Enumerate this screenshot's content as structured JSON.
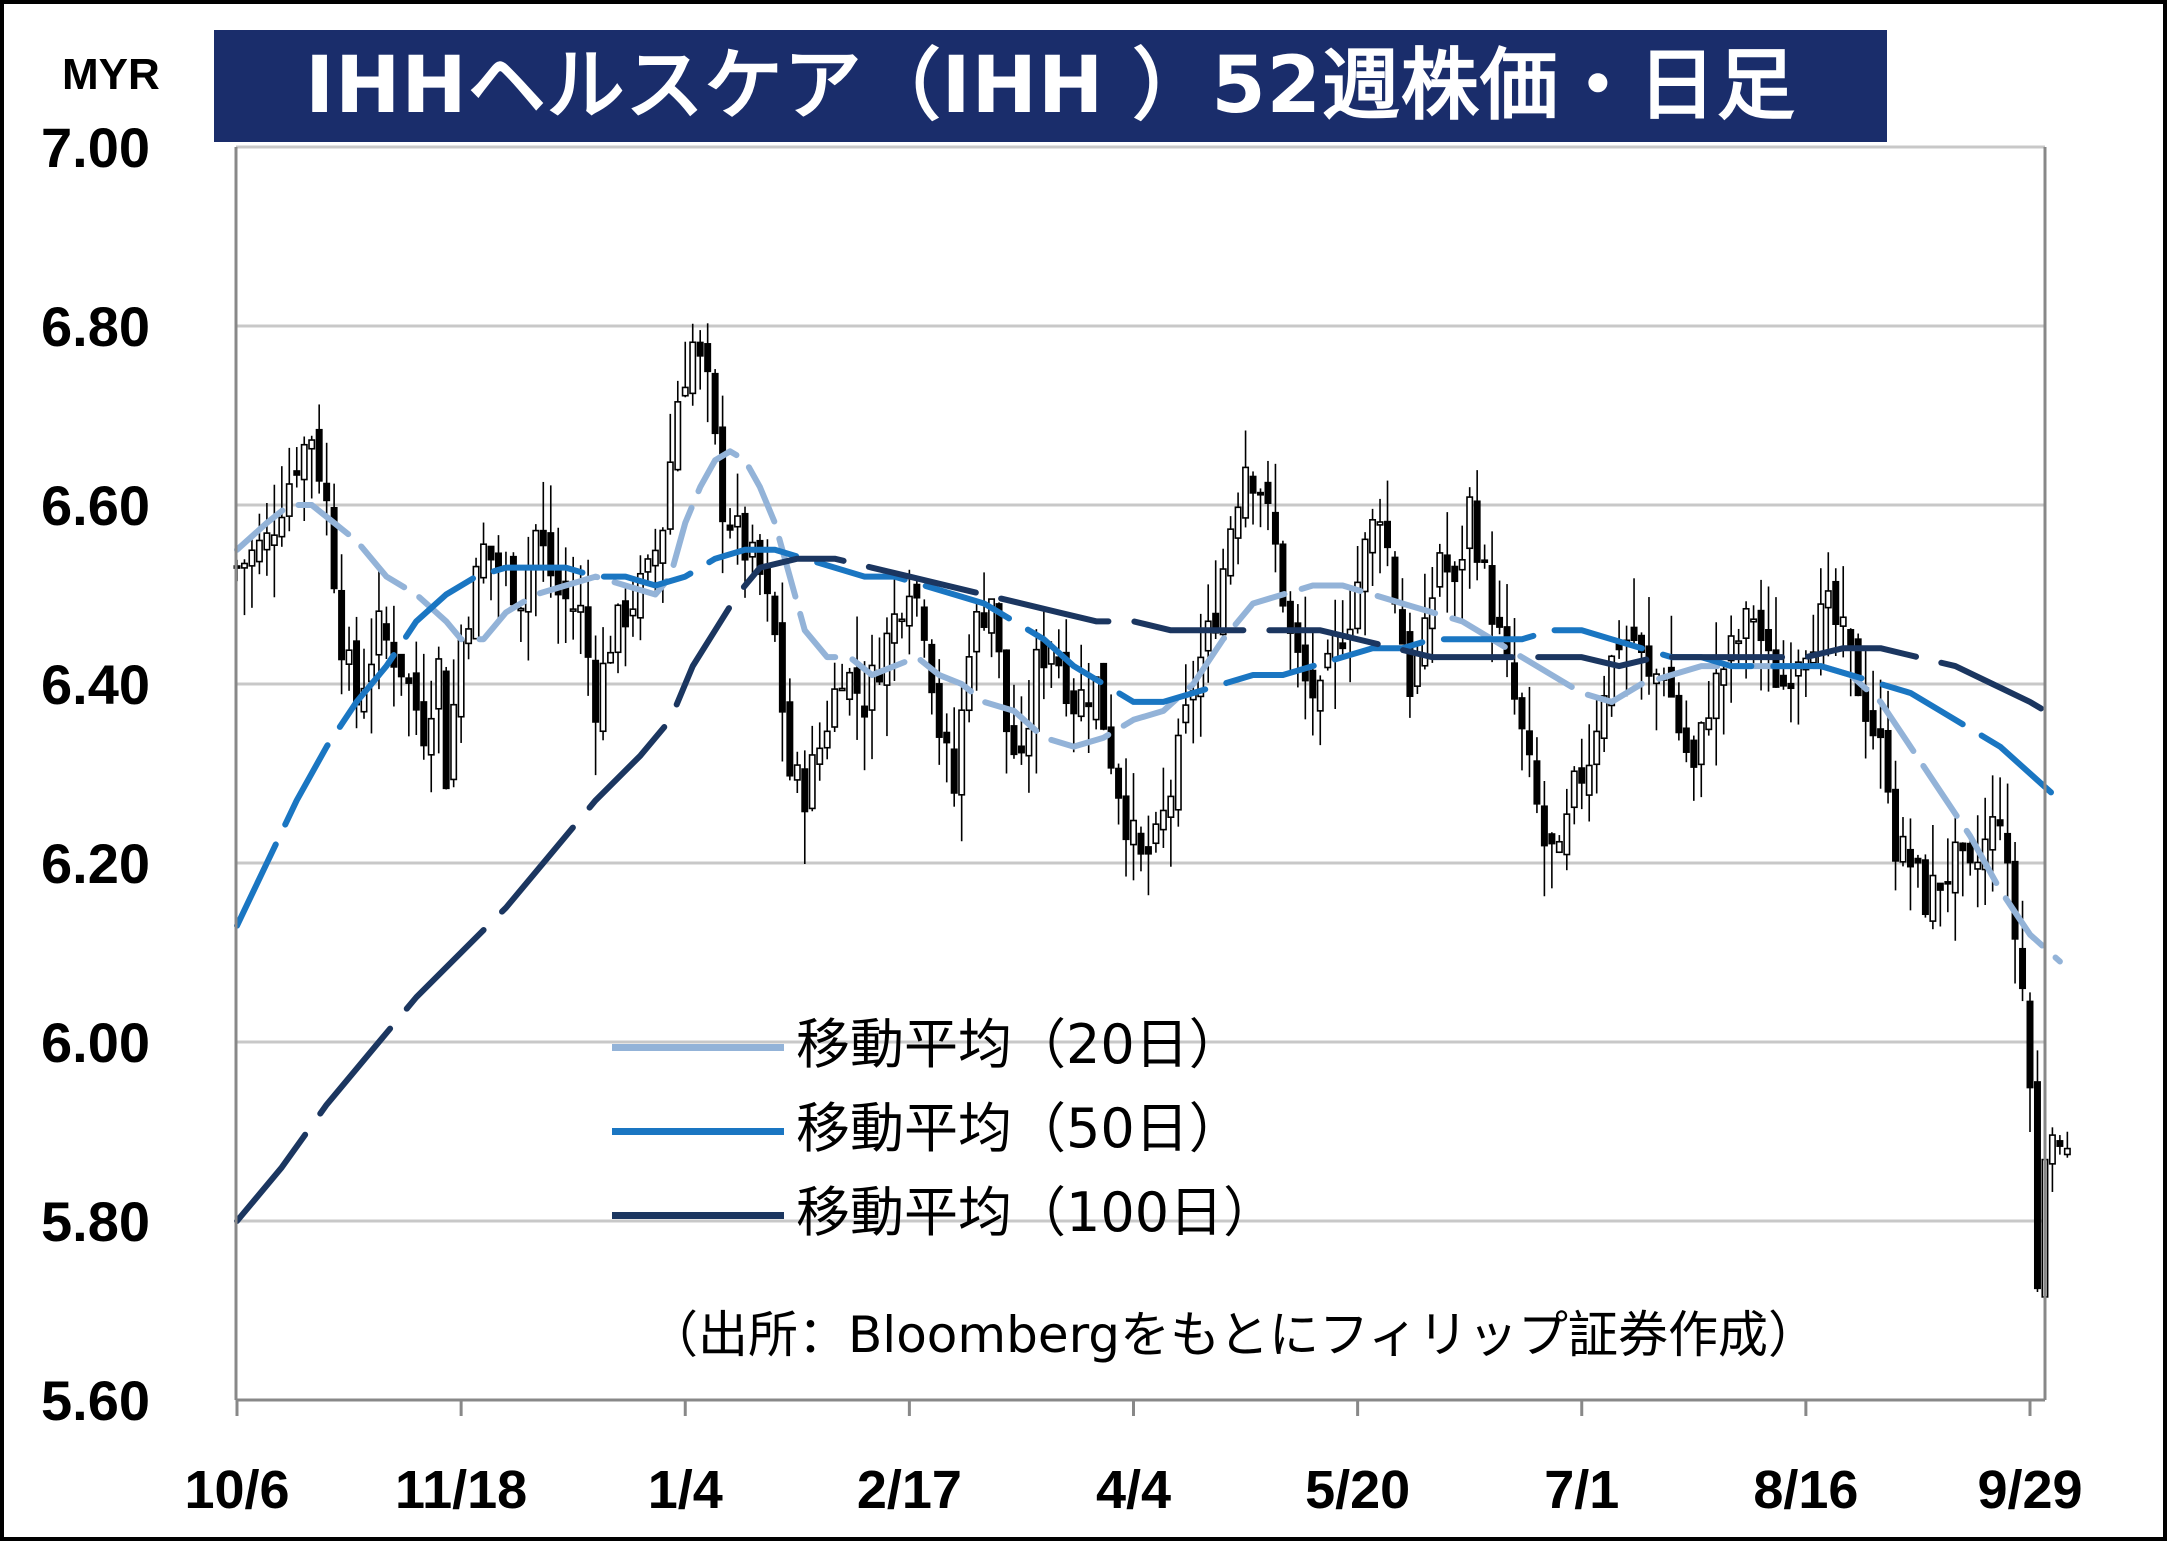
{
  "title": "IHHヘルスケア（IHH ）52週株価・日足",
  "unit": "MYR",
  "source": "（出所：Bloombergをもとにフィリップ証券作成）",
  "colors": {
    "title_bg": "#1a2d6b",
    "ma20": "#93b3d8",
    "ma50": "#1a76c2",
    "ma100": "#1b3660",
    "grid": "#c8c8c8",
    "candle": "#000000"
  },
  "chart_data": {
    "type": "candlestick",
    "title": "IHHヘルスケア（IHH ）52週株価・日足",
    "ylabel": "MYR",
    "ylim": [
      5.6,
      7.0
    ],
    "yticks": [
      "7.00",
      "6.80",
      "6.60",
      "6.40",
      "6.20",
      "6.00",
      "5.80",
      "5.60"
    ],
    "xticks": [
      "10/6",
      "11/18",
      "1/4",
      "2/17",
      "4/4",
      "5/20",
      "7/1",
      "8/16",
      "9/29"
    ],
    "xtick_positions": [
      0,
      30,
      60,
      90,
      120,
      150,
      180,
      210,
      240
    ],
    "num_days": 241,
    "grid": "horizontal",
    "legend_position": "bottom-center",
    "close_anchors": [
      [
        0,
        6.53
      ],
      [
        4,
        6.56
      ],
      [
        8,
        6.65
      ],
      [
        10,
        6.68
      ],
      [
        12,
        6.6
      ],
      [
        14,
        6.45
      ],
      [
        16,
        6.38
      ],
      [
        19,
        6.46
      ],
      [
        22,
        6.42
      ],
      [
        25,
        6.35
      ],
      [
        27,
        6.42
      ],
      [
        28,
        6.3
      ],
      [
        30,
        6.45
      ],
      [
        33,
        6.55
      ],
      [
        36,
        6.52
      ],
      [
        38,
        6.5
      ],
      [
        40,
        6.57
      ],
      [
        43,
        6.5
      ],
      [
        46,
        6.48
      ],
      [
        48,
        6.38
      ],
      [
        50,
        6.45
      ],
      [
        52,
        6.48
      ],
      [
        55,
        6.52
      ],
      [
        57,
        6.58
      ],
      [
        59,
        6.72
      ],
      [
        61,
        6.78
      ],
      [
        63,
        6.73
      ],
      [
        65,
        6.6
      ],
      [
        68,
        6.55
      ],
      [
        70,
        6.52
      ],
      [
        72,
        6.45
      ],
      [
        74,
        6.3
      ],
      [
        76,
        6.28
      ],
      [
        78,
        6.33
      ],
      [
        81,
        6.42
      ],
      [
        84,
        6.38
      ],
      [
        87,
        6.45
      ],
      [
        90,
        6.52
      ],
      [
        92,
        6.47
      ],
      [
        94,
        6.35
      ],
      [
        96,
        6.28
      ],
      [
        98,
        6.45
      ],
      [
        101,
        6.5
      ],
      [
        103,
        6.35
      ],
      [
        105,
        6.3
      ],
      [
        107,
        6.42
      ],
      [
        109,
        6.45
      ],
      [
        112,
        6.38
      ],
      [
        115,
        6.4
      ],
      [
        117,
        6.32
      ],
      [
        119,
        6.25
      ],
      [
        121,
        6.2
      ],
      [
        123,
        6.22
      ],
      [
        125,
        6.28
      ],
      [
        128,
        6.4
      ],
      [
        131,
        6.48
      ],
      [
        133,
        6.58
      ],
      [
        135,
        6.65
      ],
      [
        137,
        6.62
      ],
      [
        139,
        6.55
      ],
      [
        141,
        6.45
      ],
      [
        143,
        6.4
      ],
      [
        145,
        6.38
      ],
      [
        147,
        6.44
      ],
      [
        149,
        6.48
      ],
      [
        151,
        6.55
      ],
      [
        153,
        6.6
      ],
      [
        155,
        6.5
      ],
      [
        157,
        6.4
      ],
      [
        159,
        6.45
      ],
      [
        161,
        6.55
      ],
      [
        163,
        6.5
      ],
      [
        165,
        6.6
      ],
      [
        167,
        6.52
      ],
      [
        169,
        6.45
      ],
      [
        171,
        6.38
      ],
      [
        173,
        6.3
      ],
      [
        175,
        6.22
      ],
      [
        177,
        6.2
      ],
      [
        179,
        6.28
      ],
      [
        181,
        6.32
      ],
      [
        183,
        6.4
      ],
      [
        185,
        6.45
      ],
      [
        187,
        6.45
      ],
      [
        189,
        6.4
      ],
      [
        191,
        6.42
      ],
      [
        193,
        6.35
      ],
      [
        195,
        6.3
      ],
      [
        197,
        6.38
      ],
      [
        199,
        6.42
      ],
      [
        201,
        6.45
      ],
      [
        203,
        6.48
      ],
      [
        205,
        6.42
      ],
      [
        207,
        6.4
      ],
      [
        209,
        6.44
      ],
      [
        211,
        6.46
      ],
      [
        213,
        6.48
      ],
      [
        215,
        6.45
      ],
      [
        217,
        6.4
      ],
      [
        219,
        6.35
      ],
      [
        221,
        6.3
      ],
      [
        222,
        6.22
      ],
      [
        224,
        6.2
      ],
      [
        226,
        6.16
      ],
      [
        228,
        6.18
      ],
      [
        230,
        6.2
      ],
      [
        232,
        6.18
      ],
      [
        234,
        6.22
      ],
      [
        236,
        6.26
      ],
      [
        237,
        6.18
      ],
      [
        238,
        6.12
      ],
      [
        239,
        6.06
      ],
      [
        240,
        5.95
      ],
      [
        241,
        5.72
      ],
      [
        242,
        5.88
      ],
      [
        243,
        5.92
      ],
      [
        244,
        5.86
      ],
      [
        245,
        5.9
      ]
    ],
    "series": [
      {
        "name": "移動平均（20日）",
        "color": "#93b3d8",
        "points": [
          [
            0,
            6.55
          ],
          [
            4,
            6.58
          ],
          [
            7,
            6.6
          ],
          [
            10,
            6.6
          ],
          [
            13,
            6.58
          ],
          [
            16,
            6.56
          ],
          [
            20,
            6.52
          ],
          [
            24,
            6.5
          ],
          [
            28,
            6.47
          ],
          [
            30,
            6.45
          ],
          [
            33,
            6.45
          ],
          [
            36,
            6.48
          ],
          [
            40,
            6.5
          ],
          [
            44,
            6.51
          ],
          [
            48,
            6.52
          ],
          [
            52,
            6.51
          ],
          [
            56,
            6.5
          ],
          [
            58,
            6.52
          ],
          [
            60,
            6.58
          ],
          [
            62,
            6.62
          ],
          [
            64,
            6.65
          ],
          [
            66,
            6.66
          ],
          [
            68,
            6.65
          ],
          [
            70,
            6.62
          ],
          [
            72,
            6.58
          ],
          [
            74,
            6.52
          ],
          [
            76,
            6.46
          ],
          [
            79,
            6.43
          ],
          [
            82,
            6.43
          ],
          [
            85,
            6.41
          ],
          [
            88,
            6.42
          ],
          [
            91,
            6.43
          ],
          [
            94,
            6.41
          ],
          [
            97,
            6.4
          ],
          [
            100,
            6.38
          ],
          [
            104,
            6.37
          ],
          [
            108,
            6.34
          ],
          [
            112,
            6.33
          ],
          [
            116,
            6.34
          ],
          [
            120,
            6.36
          ],
          [
            124,
            6.37
          ],
          [
            128,
            6.4
          ],
          [
            132,
            6.45
          ],
          [
            136,
            6.49
          ],
          [
            140,
            6.5
          ],
          [
            144,
            6.51
          ],
          [
            148,
            6.51
          ],
          [
            152,
            6.5
          ],
          [
            156,
            6.49
          ],
          [
            160,
            6.48
          ],
          [
            164,
            6.47
          ],
          [
            168,
            6.45
          ],
          [
            172,
            6.43
          ],
          [
            176,
            6.41
          ],
          [
            180,
            6.39
          ],
          [
            184,
            6.38
          ],
          [
            188,
            6.4
          ],
          [
            192,
            6.41
          ],
          [
            196,
            6.42
          ],
          [
            200,
            6.42
          ],
          [
            204,
            6.42
          ],
          [
            208,
            6.42
          ],
          [
            212,
            6.42
          ],
          [
            216,
            6.41
          ],
          [
            220,
            6.38
          ],
          [
            224,
            6.33
          ],
          [
            228,
            6.28
          ],
          [
            232,
            6.23
          ],
          [
            236,
            6.17
          ],
          [
            240,
            6.12
          ],
          [
            244,
            6.09
          ]
        ]
      },
      {
        "name": "移動平均（50日）",
        "color": "#1a76c2",
        "points": [
          [
            0,
            6.13
          ],
          [
            4,
            6.2
          ],
          [
            8,
            6.27
          ],
          [
            12,
            6.33
          ],
          [
            16,
            6.38
          ],
          [
            20,
            6.42
          ],
          [
            24,
            6.47
          ],
          [
            28,
            6.5
          ],
          [
            32,
            6.52
          ],
          [
            36,
            6.53
          ],
          [
            40,
            6.53
          ],
          [
            44,
            6.53
          ],
          [
            48,
            6.52
          ],
          [
            52,
            6.52
          ],
          [
            56,
            6.51
          ],
          [
            60,
            6.52
          ],
          [
            64,
            6.54
          ],
          [
            68,
            6.55
          ],
          [
            72,
            6.55
          ],
          [
            76,
            6.54
          ],
          [
            80,
            6.53
          ],
          [
            84,
            6.52
          ],
          [
            88,
            6.52
          ],
          [
            92,
            6.51
          ],
          [
            96,
            6.5
          ],
          [
            100,
            6.49
          ],
          [
            104,
            6.47
          ],
          [
            108,
            6.45
          ],
          [
            112,
            6.42
          ],
          [
            116,
            6.4
          ],
          [
            120,
            6.38
          ],
          [
            124,
            6.38
          ],
          [
            128,
            6.39
          ],
          [
            132,
            6.4
          ],
          [
            136,
            6.41
          ],
          [
            140,
            6.41
          ],
          [
            144,
            6.42
          ],
          [
            148,
            6.43
          ],
          [
            152,
            6.44
          ],
          [
            156,
            6.44
          ],
          [
            160,
            6.45
          ],
          [
            164,
            6.45
          ],
          [
            168,
            6.45
          ],
          [
            172,
            6.45
          ],
          [
            176,
            6.46
          ],
          [
            180,
            6.46
          ],
          [
            184,
            6.45
          ],
          [
            188,
            6.44
          ],
          [
            192,
            6.43
          ],
          [
            196,
            6.43
          ],
          [
            200,
            6.42
          ],
          [
            204,
            6.42
          ],
          [
            208,
            6.42
          ],
          [
            212,
            6.42
          ],
          [
            216,
            6.41
          ],
          [
            220,
            6.4
          ],
          [
            224,
            6.39
          ],
          [
            228,
            6.37
          ],
          [
            232,
            6.35
          ],
          [
            236,
            6.33
          ],
          [
            240,
            6.3
          ],
          [
            244,
            6.27
          ]
        ]
      },
      {
        "name": "移動平均（100日）",
        "color": "#1b3660",
        "points": [
          [
            0,
            5.8
          ],
          [
            6,
            5.86
          ],
          [
            12,
            5.93
          ],
          [
            18,
            5.99
          ],
          [
            24,
            6.05
          ],
          [
            30,
            6.1
          ],
          [
            36,
            6.15
          ],
          [
            42,
            6.21
          ],
          [
            48,
            6.27
          ],
          [
            54,
            6.32
          ],
          [
            58,
            6.36
          ],
          [
            61,
            6.42
          ],
          [
            64,
            6.46
          ],
          [
            67,
            6.5
          ],
          [
            70,
            6.53
          ],
          [
            75,
            6.54
          ],
          [
            80,
            6.54
          ],
          [
            85,
            6.53
          ],
          [
            90,
            6.52
          ],
          [
            95,
            6.51
          ],
          [
            100,
            6.5
          ],
          [
            105,
            6.49
          ],
          [
            110,
            6.48
          ],
          [
            115,
            6.47
          ],
          [
            120,
            6.47
          ],
          [
            125,
            6.46
          ],
          [
            130,
            6.46
          ],
          [
            135,
            6.46
          ],
          [
            140,
            6.46
          ],
          [
            145,
            6.46
          ],
          [
            150,
            6.45
          ],
          [
            155,
            6.44
          ],
          [
            160,
            6.43
          ],
          [
            165,
            6.43
          ],
          [
            170,
            6.43
          ],
          [
            175,
            6.43
          ],
          [
            180,
            6.43
          ],
          [
            185,
            6.42
          ],
          [
            190,
            6.43
          ],
          [
            195,
            6.43
          ],
          [
            200,
            6.43
          ],
          [
            205,
            6.43
          ],
          [
            210,
            6.43
          ],
          [
            215,
            6.44
          ],
          [
            220,
            6.44
          ],
          [
            225,
            6.43
          ],
          [
            230,
            6.42
          ],
          [
            235,
            6.4
          ],
          [
            240,
            6.38
          ],
          [
            244,
            6.36
          ]
        ]
      }
    ]
  }
}
